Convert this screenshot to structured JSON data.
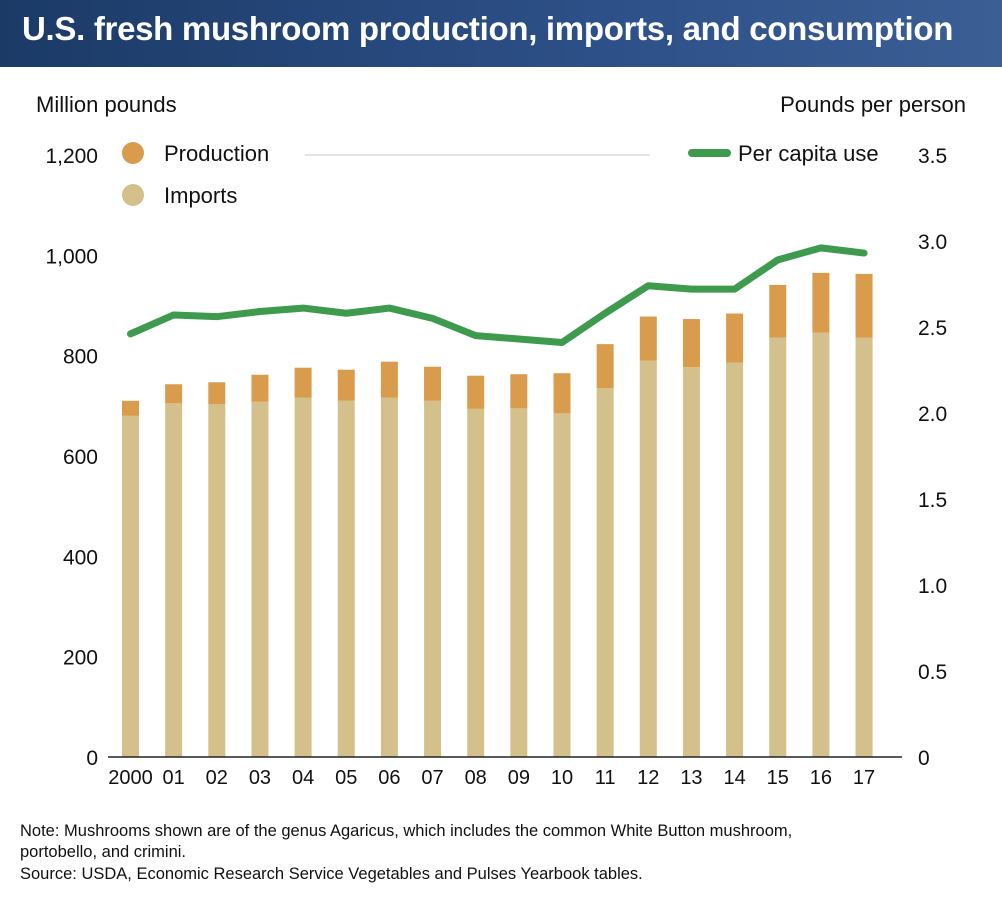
{
  "title": "U.S. fresh mushroom production, imports, and consumption",
  "left_axis_label": "Million pounds",
  "right_axis_label": "Pounds per person",
  "note": "Note: Mushrooms shown are of the genus Agaricus, which includes the common White Button mushroom,\nportobello, and crimini.",
  "source": "Source: USDA, Economic Research Service Vegetables and Pulses Yearbook tables.",
  "colors": {
    "production": "#d89c4c",
    "imports": "#d3c08a",
    "per_capita": "#3e9a4c",
    "title_bar": "#24477a"
  },
  "chart_data": {
    "type": "bar",
    "stacked": true,
    "categories": [
      "2000",
      "01",
      "02",
      "03",
      "04",
      "05",
      "06",
      "07",
      "08",
      "09",
      "10",
      "11",
      "12",
      "13",
      "14",
      "15",
      "16",
      "17"
    ],
    "series": [
      {
        "name": "Imports",
        "axis": "left",
        "values": [
          680,
          705,
          703,
          708,
          716,
          710,
          716,
          710,
          694,
          695,
          685,
          735,
          790,
          777,
          786,
          836,
          846,
          836
        ]
      },
      {
        "name": "Production",
        "axis": "left",
        "values": [
          30,
          38,
          44,
          54,
          60,
          62,
          72,
          68,
          66,
          68,
          80,
          88,
          88,
          96,
          98,
          105,
          119,
          127
        ]
      },
      {
        "name": "Per capita use",
        "type": "line",
        "axis": "right",
        "values": [
          2.46,
          2.57,
          2.56,
          2.59,
          2.61,
          2.58,
          2.61,
          2.55,
          2.45,
          2.43,
          2.41,
          2.58,
          2.74,
          2.72,
          2.72,
          2.89,
          2.96,
          2.93
        ]
      }
    ],
    "ylim_left": [
      0,
      1200
    ],
    "yticks_left": [
      "0",
      "200",
      "400",
      "600",
      "800",
      "1,000",
      "1,200"
    ],
    "ylim_right": [
      0,
      3.5
    ],
    "yticks_right": [
      "0",
      "0.5",
      "1.0",
      "1.5",
      "2.0",
      "2.5",
      "3.0",
      "3.5"
    ],
    "grid": false,
    "legend_position": "top"
  }
}
